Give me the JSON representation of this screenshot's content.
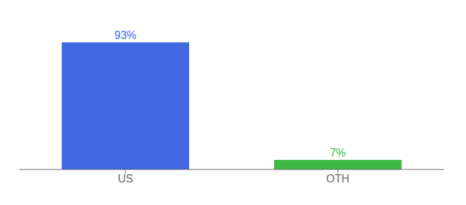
{
  "chart_data": {
    "type": "bar",
    "categories": [
      "US",
      "OTH"
    ],
    "values": [
      93,
      7
    ],
    "value_labels": [
      "93%",
      "7%"
    ],
    "colors": [
      "#4169E1",
      "#3CB843"
    ],
    "ylim": [
      0,
      105
    ],
    "grid": false,
    "tick_labels": "x"
  }
}
